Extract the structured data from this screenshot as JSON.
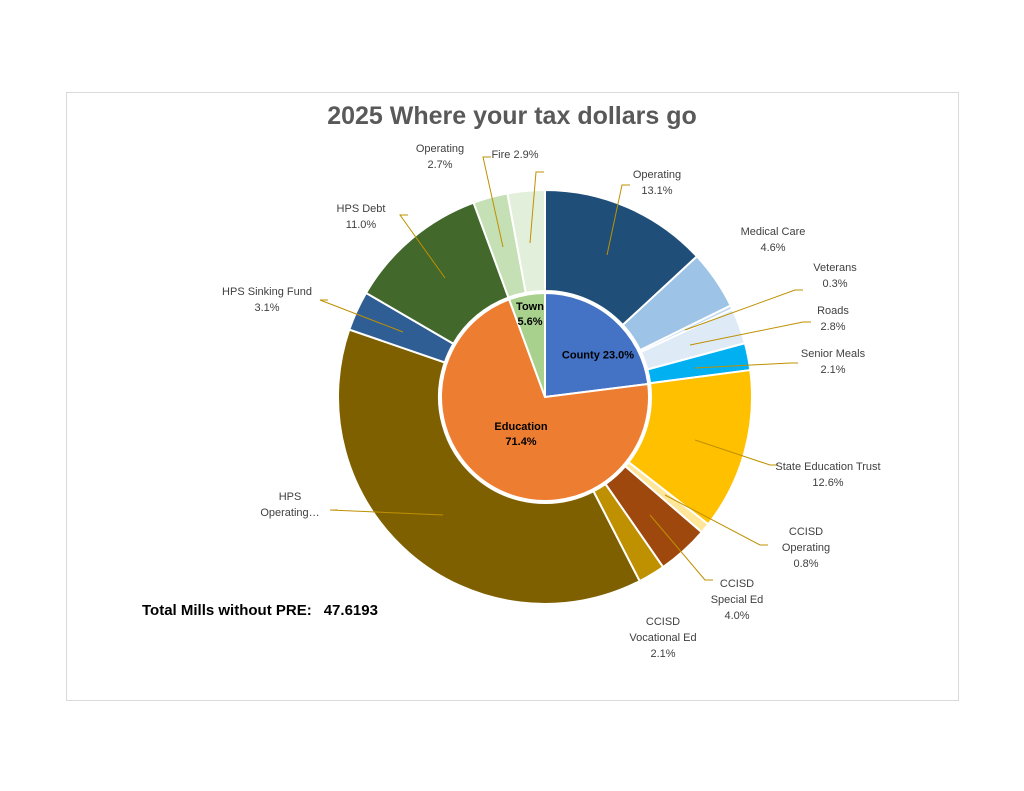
{
  "chart_data": {
    "type": "sunburst",
    "title": "2025 Where your tax dollars go",
    "inner": [
      {
        "name": "County",
        "label": "County 23.0%",
        "value": 23.0,
        "color": "#4472c4"
      },
      {
        "name": "Education",
        "label": "Education\n71.4%",
        "value": 71.4,
        "color": "#ed7d31"
      },
      {
        "name": "Town",
        "label": "Town\n5.6%",
        "value": 5.6,
        "color": "#a9d18e"
      }
    ],
    "outer": [
      {
        "name": "Operating",
        "parent": "County",
        "label": "Operating\n13.1%",
        "value": 13.1,
        "color": "#1f4e79"
      },
      {
        "name": "Medical Care",
        "parent": "County",
        "label": "Medical Care\n4.6%",
        "value": 4.6,
        "color": "#9dc3e6"
      },
      {
        "name": "Veterans",
        "parent": "County",
        "label": "Veterans\n0.3%",
        "value": 0.3,
        "color": "#bdd7ee"
      },
      {
        "name": "Roads",
        "parent": "County",
        "label": "Roads\n2.8%",
        "value": 2.8,
        "color": "#deebf7"
      },
      {
        "name": "Senior Meals",
        "parent": "County",
        "label": "Senior Meals\n2.1%",
        "value": 2.1,
        "color": "#00b0f0"
      },
      {
        "name": "State Education Trust",
        "parent": "Education",
        "label": "State Education Trust\n12.6%",
        "value": 12.6,
        "color": "#ffc000"
      },
      {
        "name": "CCISD Operating",
        "parent": "Education",
        "label": "CCISD\nOperating\n0.8%",
        "value": 0.8,
        "color": "#ffe699"
      },
      {
        "name": "CCISD Special Ed",
        "parent": "Education",
        "label": "CCISD\nSpecial Ed\n4.0%",
        "value": 4.0,
        "color": "#9e480e"
      },
      {
        "name": "CCISD Vocational Ed",
        "parent": "Education",
        "label": "CCISD\nVocational Ed\n2.1%",
        "value": 2.1,
        "color": "#bf9000"
      },
      {
        "name": "HPS Operating",
        "parent": "Education",
        "label": "HPS\nOperating…",
        "value": 37.8,
        "color": "#7f6000"
      },
      {
        "name": "HPS Sinking Fund",
        "parent": "Education",
        "label": "HPS Sinking Fund\n3.1%",
        "value": 3.1,
        "color": "#2e5e94"
      },
      {
        "name": "HPS Debt",
        "parent": "Education",
        "label": "HPS Debt\n11.0%",
        "value": 11.0,
        "color": "#43682b"
      },
      {
        "name": "Operating",
        "parent": "Town",
        "label": "Operating\n2.7%",
        "value": 2.7,
        "color": "#c5e0b4"
      },
      {
        "name": "Fire",
        "parent": "Town",
        "label": "Fire 2.9%",
        "value": 2.9,
        "color": "#e2efda"
      }
    ],
    "leader_color": "#bf9000"
  },
  "footer": {
    "total_label": "Total Mills without PRE:",
    "total_value": "47.6193"
  }
}
